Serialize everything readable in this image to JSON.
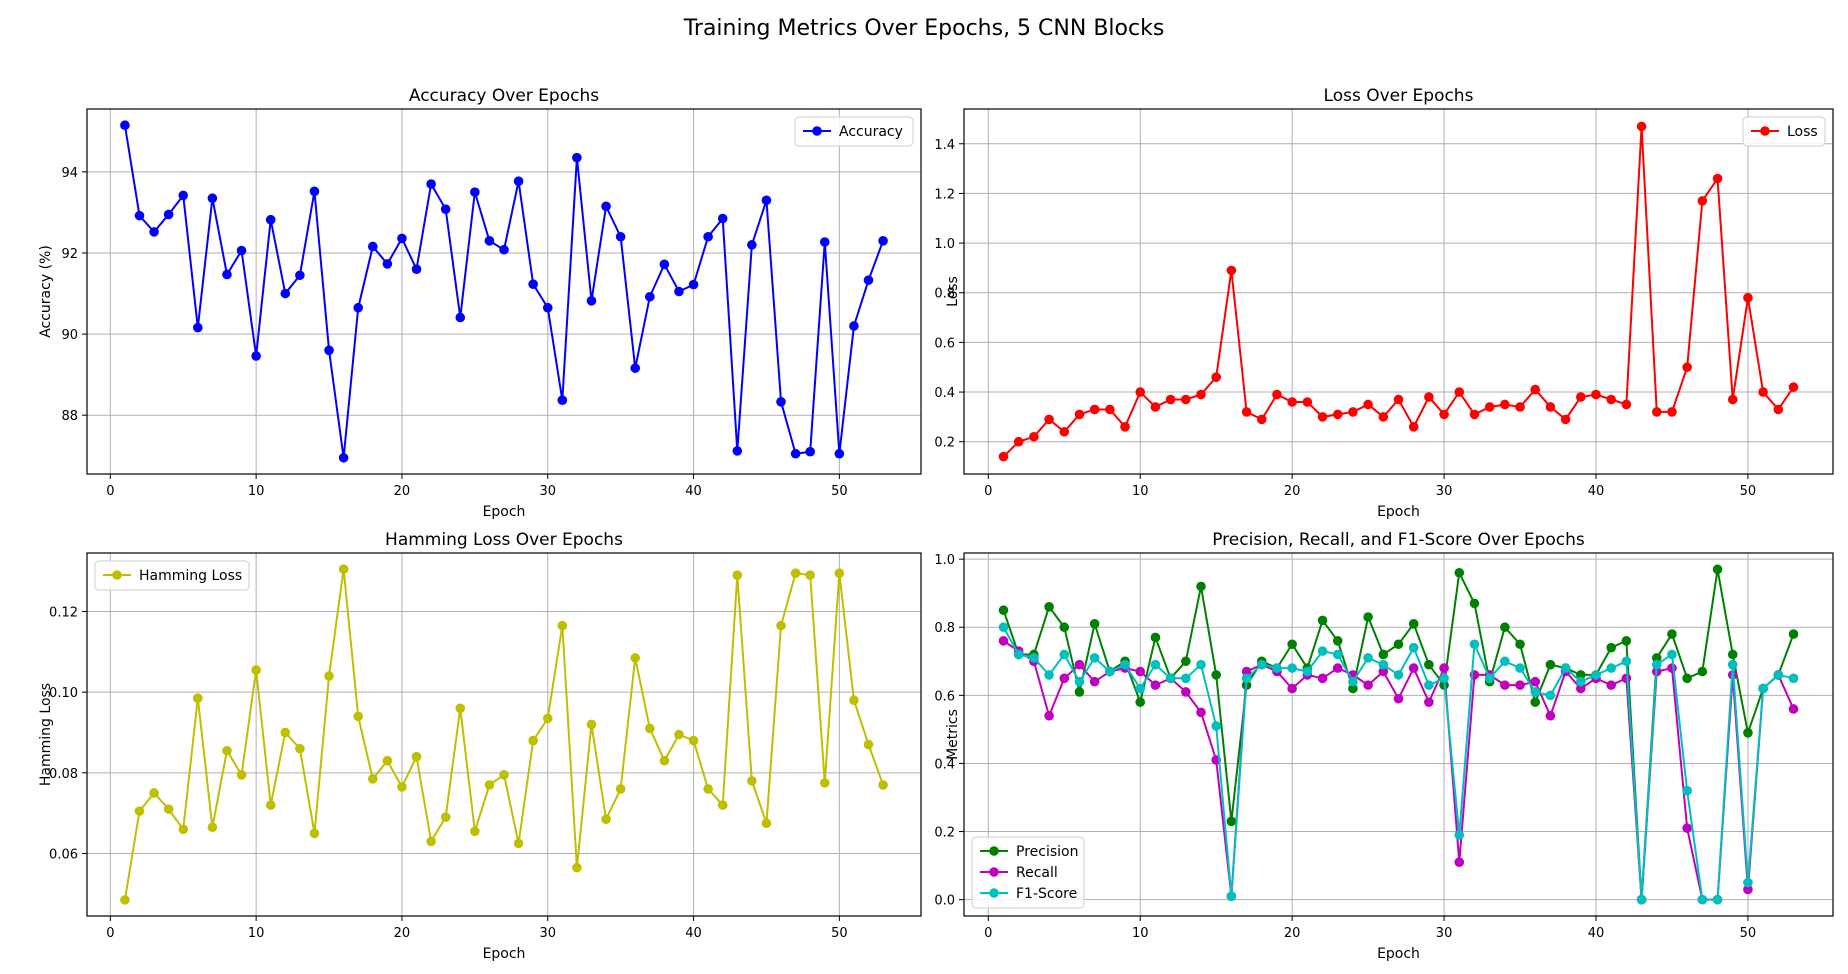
{
  "figure": {
    "title": "Training Metrics Over Epochs, 5 CNN Blocks"
  },
  "chart_data": [
    {
      "type": "line",
      "title": "Accuracy Over Epochs",
      "xlabel": "Epoch",
      "ylabel": "Accuracy (%)",
      "xlim": [
        -1.6,
        55.6
      ],
      "ylim": [
        86.55,
        95.55
      ],
      "xticks": [
        0,
        10,
        20,
        30,
        40,
        50
      ],
      "yticks": [
        88,
        90,
        92,
        94
      ],
      "grid": true,
      "legend_position": "top-right",
      "x": [
        1,
        2,
        3,
        4,
        5,
        6,
        7,
        8,
        9,
        10,
        11,
        12,
        13,
        14,
        15,
        16,
        17,
        18,
        19,
        20,
        21,
        22,
        23,
        24,
        25,
        26,
        27,
        28,
        29,
        30,
        31,
        32,
        33,
        34,
        35,
        36,
        37,
        38,
        39,
        40,
        41,
        42,
        43,
        44,
        45,
        46,
        47,
        48,
        49,
        50,
        51,
        52,
        53
      ],
      "series": [
        {
          "name": "Accuracy",
          "color": "#0000ff",
          "values": [
            95.15,
            92.92,
            92.52,
            92.95,
            93.42,
            90.16,
            93.35,
            91.47,
            92.06,
            89.46,
            92.82,
            91.0,
            91.45,
            93.52,
            89.6,
            86.95,
            90.65,
            92.16,
            91.73,
            92.36,
            91.6,
            93.7,
            93.08,
            90.41,
            93.5,
            92.3,
            92.08,
            93.77,
            91.23,
            90.65,
            88.37,
            94.35,
            90.82,
            93.15,
            92.4,
            89.16,
            90.92,
            91.72,
            91.05,
            91.22,
            92.4,
            92.85,
            87.12,
            92.2,
            93.3,
            88.33,
            87.05,
            87.1,
            92.27,
            87.05,
            90.2,
            91.33,
            92.3
          ]
        }
      ]
    },
    {
      "type": "line",
      "title": "Loss Over Epochs",
      "xlabel": "Epoch",
      "ylabel": "Loss",
      "xlim": [
        -1.6,
        55.6
      ],
      "ylim": [
        0.07,
        1.54
      ],
      "xticks": [
        0,
        10,
        20,
        30,
        40,
        50
      ],
      "yticks": [
        0.2,
        0.4,
        0.6,
        0.8,
        1.0,
        1.2,
        1.4
      ],
      "grid": true,
      "legend_position": "top-right",
      "x": [
        1,
        2,
        3,
        4,
        5,
        6,
        7,
        8,
        9,
        10,
        11,
        12,
        13,
        14,
        15,
        16,
        17,
        18,
        19,
        20,
        21,
        22,
        23,
        24,
        25,
        26,
        27,
        28,
        29,
        30,
        31,
        32,
        33,
        34,
        35,
        36,
        37,
        38,
        39,
        40,
        41,
        42,
        43,
        44,
        45,
        46,
        47,
        48,
        49,
        50,
        51,
        52,
        53
      ],
      "series": [
        {
          "name": "Loss",
          "color": "#ff0000",
          "values": [
            0.14,
            0.2,
            0.22,
            0.29,
            0.24,
            0.31,
            0.33,
            0.33,
            0.26,
            0.4,
            0.34,
            0.37,
            0.37,
            0.39,
            0.46,
            0.89,
            0.32,
            0.29,
            0.39,
            0.36,
            0.36,
            0.3,
            0.31,
            0.32,
            0.35,
            0.3,
            0.37,
            0.26,
            0.38,
            0.31,
            0.4,
            0.31,
            0.34,
            0.35,
            0.34,
            0.41,
            0.34,
            0.29,
            0.38,
            0.39,
            0.37,
            0.35,
            1.47,
            0.32,
            0.32,
            0.5,
            1.17,
            1.26,
            0.37,
            0.78,
            0.4,
            0.33,
            0.42
          ]
        }
      ]
    },
    {
      "type": "line",
      "title": "Hamming Loss Over Epochs",
      "xlabel": "Epoch",
      "ylabel": "Hamming Loss",
      "xlim": [
        -1.6,
        55.6
      ],
      "ylim": [
        0.0445,
        0.1345
      ],
      "xticks": [
        0,
        10,
        20,
        30,
        40,
        50
      ],
      "yticks": [
        0.06,
        0.08,
        0.1,
        0.12
      ],
      "ytick_labels": [
        "0.06",
        "0.08",
        "0.10",
        "0.12"
      ],
      "grid": true,
      "legend_position": "top-left",
      "x": [
        1,
        2,
        3,
        4,
        5,
        6,
        7,
        8,
        9,
        10,
        11,
        12,
        13,
        14,
        15,
        16,
        17,
        18,
        19,
        20,
        21,
        22,
        23,
        24,
        25,
        26,
        27,
        28,
        29,
        30,
        31,
        32,
        33,
        34,
        35,
        36,
        37,
        38,
        39,
        40,
        41,
        42,
        43,
        44,
        45,
        46,
        47,
        48,
        49,
        50,
        51,
        52,
        53
      ],
      "series": [
        {
          "name": "Hamming Loss",
          "color": "#bfbf00",
          "values": [
            0.0485,
            0.0705,
            0.075,
            0.071,
            0.066,
            0.0985,
            0.0665,
            0.0855,
            0.0795,
            0.1055,
            0.072,
            0.09,
            0.086,
            0.065,
            0.104,
            0.1305,
            0.094,
            0.0785,
            0.083,
            0.0765,
            0.084,
            0.063,
            0.069,
            0.096,
            0.0655,
            0.077,
            0.0795,
            0.0625,
            0.088,
            0.0935,
            0.1165,
            0.0565,
            0.092,
            0.0685,
            0.076,
            0.1085,
            0.091,
            0.083,
            0.0895,
            0.088,
            0.076,
            0.072,
            0.129,
            0.078,
            0.0675,
            0.1165,
            0.1295,
            0.129,
            0.0775,
            0.1295,
            0.098,
            0.087,
            0.077
          ]
        }
      ]
    },
    {
      "type": "line",
      "title": "Precision, Recall, and F1-Score Over Epochs",
      "xlabel": "Epoch",
      "ylabel": "Metrics",
      "xlim": [
        -1.6,
        55.6
      ],
      "ylim": [
        -0.048,
        1.018
      ],
      "xticks": [
        0,
        10,
        20,
        30,
        40,
        50
      ],
      "yticks": [
        0.0,
        0.2,
        0.4,
        0.6,
        0.8,
        1.0
      ],
      "grid": true,
      "legend_position": "bottom-left",
      "x": [
        1,
        2,
        3,
        4,
        5,
        6,
        7,
        8,
        9,
        10,
        11,
        12,
        13,
        14,
        15,
        16,
        17,
        18,
        19,
        20,
        21,
        22,
        23,
        24,
        25,
        26,
        27,
        28,
        29,
        30,
        31,
        32,
        33,
        34,
        35,
        36,
        37,
        38,
        39,
        40,
        41,
        42,
        43,
        44,
        45,
        46,
        47,
        48,
        49,
        50,
        51,
        52,
        53
      ],
      "series": [
        {
          "name": "Precision",
          "color": "#008000",
          "values": [
            0.85,
            0.72,
            0.72,
            0.86,
            0.8,
            0.61,
            0.81,
            0.67,
            0.7,
            0.58,
            0.77,
            0.65,
            0.7,
            0.92,
            0.66,
            0.23,
            0.63,
            0.7,
            0.68,
            0.75,
            0.68,
            0.82,
            0.76,
            0.62,
            0.83,
            0.72,
            0.75,
            0.81,
            0.69,
            0.63,
            0.96,
            0.87,
            0.64,
            0.8,
            0.75,
            0.58,
            0.69,
            0.68,
            0.66,
            0.66,
            0.74,
            0.76,
            0.0,
            0.71,
            0.78,
            0.65,
            0.67,
            0.97,
            0.72,
            0.49,
            0.62,
            0.66,
            0.78
          ]
        },
        {
          "name": "Recall",
          "color": "#bf00bf",
          "values": [
            0.76,
            0.73,
            0.7,
            0.54,
            0.65,
            0.69,
            0.64,
            0.67,
            0.68,
            0.67,
            0.63,
            0.65,
            0.61,
            0.55,
            0.41,
            0.01,
            0.67,
            0.69,
            0.67,
            0.62,
            0.66,
            0.65,
            0.68,
            0.66,
            0.63,
            0.67,
            0.59,
            0.68,
            0.58,
            0.68,
            0.11,
            0.66,
            0.66,
            0.63,
            0.63,
            0.64,
            0.54,
            0.67,
            0.62,
            0.65,
            0.63,
            0.65,
            0.0,
            0.67,
            0.68,
            0.21,
            0.0,
            0.0,
            0.66,
            0.03,
            0.62,
            0.66,
            0.56
          ]
        },
        {
          "name": "F1-Score",
          "color": "#00bfbf",
          "values": [
            0.8,
            0.72,
            0.71,
            0.66,
            0.72,
            0.64,
            0.71,
            0.67,
            0.69,
            0.62,
            0.69,
            0.65,
            0.65,
            0.69,
            0.51,
            0.01,
            0.65,
            0.69,
            0.68,
            0.68,
            0.67,
            0.73,
            0.72,
            0.64,
            0.71,
            0.69,
            0.66,
            0.74,
            0.63,
            0.65,
            0.19,
            0.75,
            0.65,
            0.7,
            0.68,
            0.61,
            0.6,
            0.68,
            0.64,
            0.66,
            0.68,
            0.7,
            0.0,
            0.69,
            0.72,
            0.32,
            0.0,
            0.0,
            0.69,
            0.05,
            0.62,
            0.66,
            0.65
          ]
        }
      ]
    }
  ]
}
